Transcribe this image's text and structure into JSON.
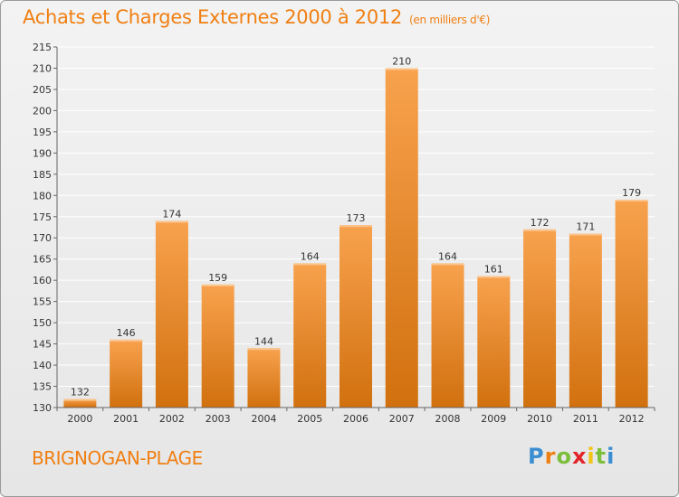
{
  "header": {
    "title": "Achats et Charges Externes 2000 à 2012",
    "subtitle": "(en milliers d'€)"
  },
  "footer": {
    "city": "BRIGNOGAN-PLAGE",
    "logo_text": "Proxiti",
    "logo_letters": [
      "P",
      "r",
      "o",
      "x",
      "i",
      "t",
      "i"
    ],
    "logo_colors": [
      "#3b8ed1",
      "#f07f12",
      "#7bbf3a",
      "#e2242a",
      "#f3c316",
      "#7bbf3a",
      "#3b8ed1"
    ]
  },
  "colors": {
    "bar_top": "#f8a24e",
    "bar_bottom": "#d1700e",
    "title": "#f07f12"
  },
  "chart_data": {
    "type": "bar",
    "title": "Achats et Charges Externes 2000 à 2012",
    "subtitle": "(en milliers d'€)",
    "xlabel": "",
    "ylabel": "",
    "categories": [
      "2000",
      "2001",
      "2002",
      "2003",
      "2004",
      "2005",
      "2006",
      "2007",
      "2008",
      "2009",
      "2010",
      "2011",
      "2012"
    ],
    "values": [
      132,
      146,
      174,
      159,
      144,
      164,
      173,
      210,
      164,
      161,
      172,
      171,
      179
    ],
    "ylim": [
      130,
      215
    ],
    "yticks": [
      130,
      135,
      140,
      145,
      150,
      155,
      160,
      165,
      170,
      175,
      180,
      185,
      190,
      195,
      200,
      205,
      210,
      215
    ],
    "grid": true,
    "legend": "none"
  }
}
